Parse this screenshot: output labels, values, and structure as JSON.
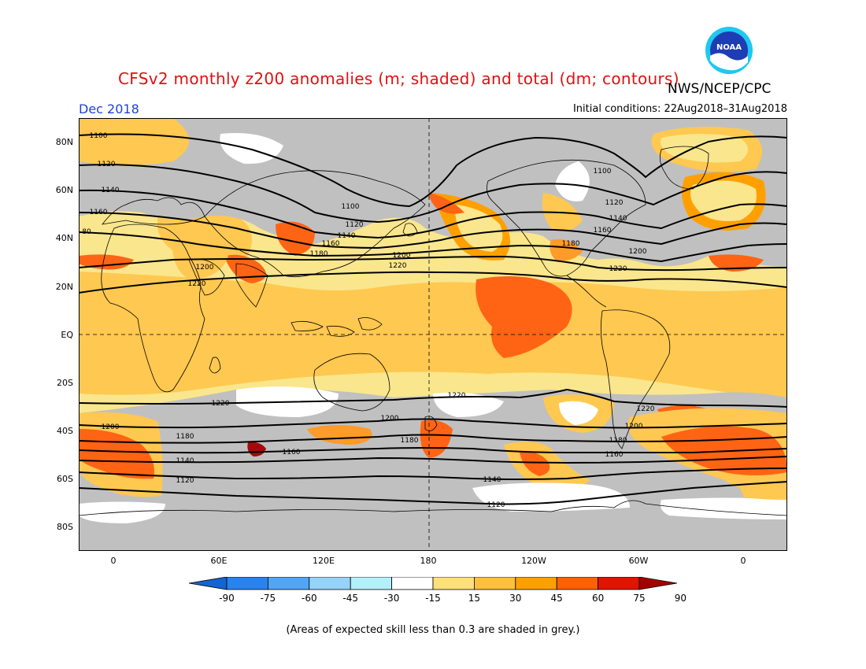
{
  "header": {
    "title": "CFSv2 monthly z200 anomalies (m; shaded) and total (dm; contours)",
    "agency": "NWS/NCEP/CPC",
    "month": "Dec 2018",
    "initial_conditions": "Initial conditions: 22Aug2018–31Aug2018",
    "logo_text": "NOAA"
  },
  "axes": {
    "lat_labels": [
      "80N",
      "60N",
      "40N",
      "20N",
      "EQ",
      "20S",
      "40S",
      "60S",
      "80S"
    ],
    "lon_labels": [
      "0",
      "60E",
      "120E",
      "180",
      "120W",
      "60W",
      "0"
    ]
  },
  "contour_labels": {
    "c1100": "1100",
    "c1120": "1120",
    "c1140": "1140",
    "c1160": "1160",
    "c1180": "1180",
    "c1200": "1200",
    "c1220": "1220",
    "c80": "80"
  },
  "colorbar": {
    "labels": [
      "-90",
      "-75",
      "-60",
      "-45",
      "-30",
      "-15",
      "15",
      "30",
      "45",
      "60",
      "75",
      "90"
    ],
    "colors": [
      "#1464d2",
      "#2882f0",
      "#50a5f5",
      "#96d2fa",
      "#b4f0fa",
      "#ffffff",
      "#ffe178",
      "#ffc03c",
      "#ffa000",
      "#ff6000",
      "#e11400",
      "#a50000"
    ]
  },
  "footnote": "(Areas of expected skill less than 0.3 are shaded in grey.)",
  "legend_colors": {
    "grey": "#c0c0c0",
    "light_yellow": "#fae68c",
    "yellow": "#ffc850",
    "orange": "#ff9b28",
    "dark_orange": "#ff6414",
    "red": "#dc2814",
    "dark_red": "#a50a0a",
    "blue": "#1e78dc"
  }
}
